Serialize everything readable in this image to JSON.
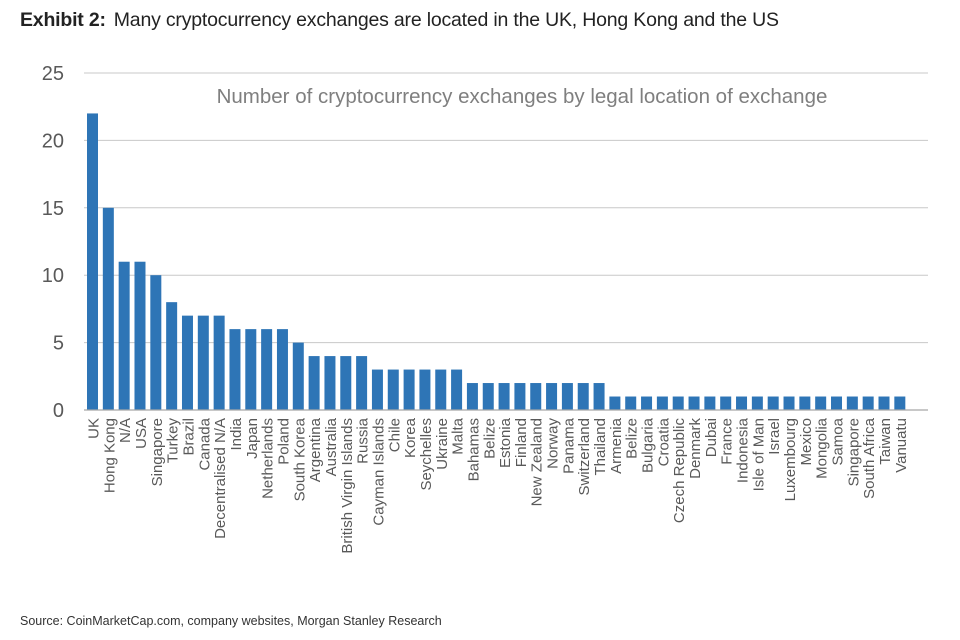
{
  "header": {
    "exhibit_label": "Exhibit 2:",
    "title": "Many cryptocurrency exchanges are located in the UK, Hong Kong and the US"
  },
  "footer": {
    "source": "Source: CoinMarketCap.com, company websites, Morgan Stanley Research"
  },
  "chart_data": {
    "type": "bar",
    "title": "Number of cryptocurrency exchanges by legal location of exchange",
    "xlabel": "",
    "ylabel": "",
    "ylim": [
      0,
      25
    ],
    "yticks": [
      0,
      5,
      10,
      15,
      20,
      25
    ],
    "grid": true,
    "legend": "none",
    "bar_color": "#2e75b6",
    "categories": [
      "UK",
      "Hong Kong",
      "N/A",
      "USA",
      "Singapore",
      "Turkey",
      "Brazil",
      "Canada",
      "Decentralised N/A",
      "India",
      "Japan",
      "Netherlands",
      "Poland",
      "South Korea",
      "Argentina",
      "Australia",
      "British Virgin Islands",
      "Russia",
      "Cayman Islands",
      "Chile",
      "Korea",
      "Seychelles",
      "Ukraine",
      "Malta",
      "Bahamas",
      "Belize",
      "Estonia",
      "Finland",
      "New Zealand",
      "Norway",
      "Panama",
      "Switzerland",
      "Thailand",
      "Armenia",
      "Belize",
      "Bulgaria",
      "Croatia",
      "Czech Republic",
      "Denmark",
      "Dubai",
      "France",
      "Indonesia",
      "Isle of Man",
      "Israel",
      "Luxembourg",
      "Mexico",
      "Mongolia",
      "Samoa",
      "Singapore",
      "South Africa",
      "Taiwan",
      "Vanuatu"
    ],
    "values": [
      22,
      15,
      11,
      11,
      10,
      8,
      7,
      7,
      7,
      6,
      6,
      6,
      6,
      5,
      4,
      4,
      4,
      4,
      3,
      3,
      3,
      3,
      3,
      3,
      2,
      2,
      2,
      2,
      2,
      2,
      2,
      2,
      2,
      1,
      1,
      1,
      1,
      1,
      1,
      1,
      1,
      1,
      1,
      1,
      1,
      1,
      1,
      1,
      1,
      1,
      1,
      1
    ]
  }
}
